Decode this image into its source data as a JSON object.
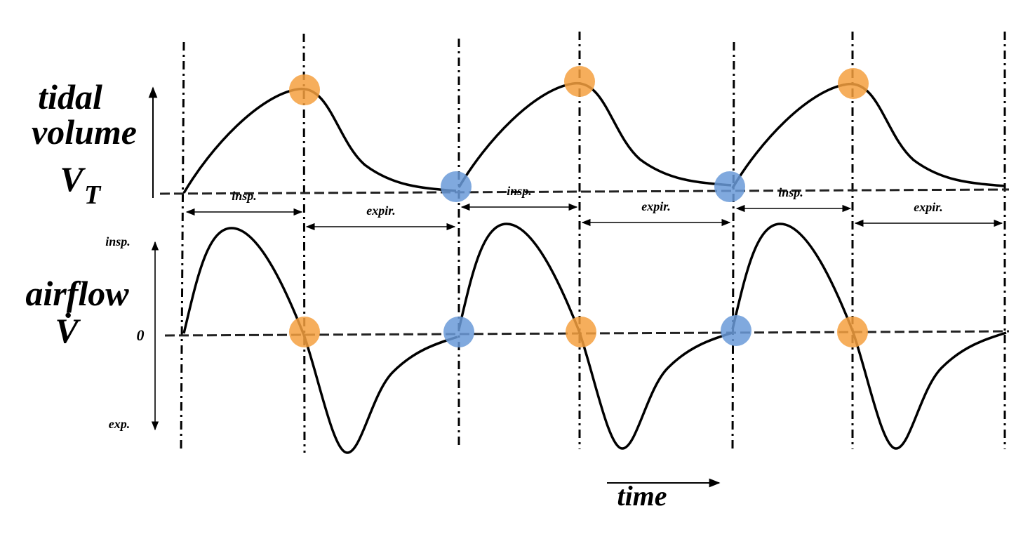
{
  "labels": {
    "tidal": "tidal",
    "volume": "volume",
    "vt": "V",
    "vt_sub": "T",
    "flow_insp": "insp.",
    "airflow": "airflow",
    "vdot": "V̇",
    "zero": "0",
    "flow_exp": "exp.",
    "time": "time"
  },
  "phase_labels": [
    {
      "insp": "insp.",
      "expir": "expir."
    },
    {
      "insp": "insp.",
      "expir": "expir."
    },
    {
      "insp": "insp.",
      "expir": "expir."
    }
  ]
}
